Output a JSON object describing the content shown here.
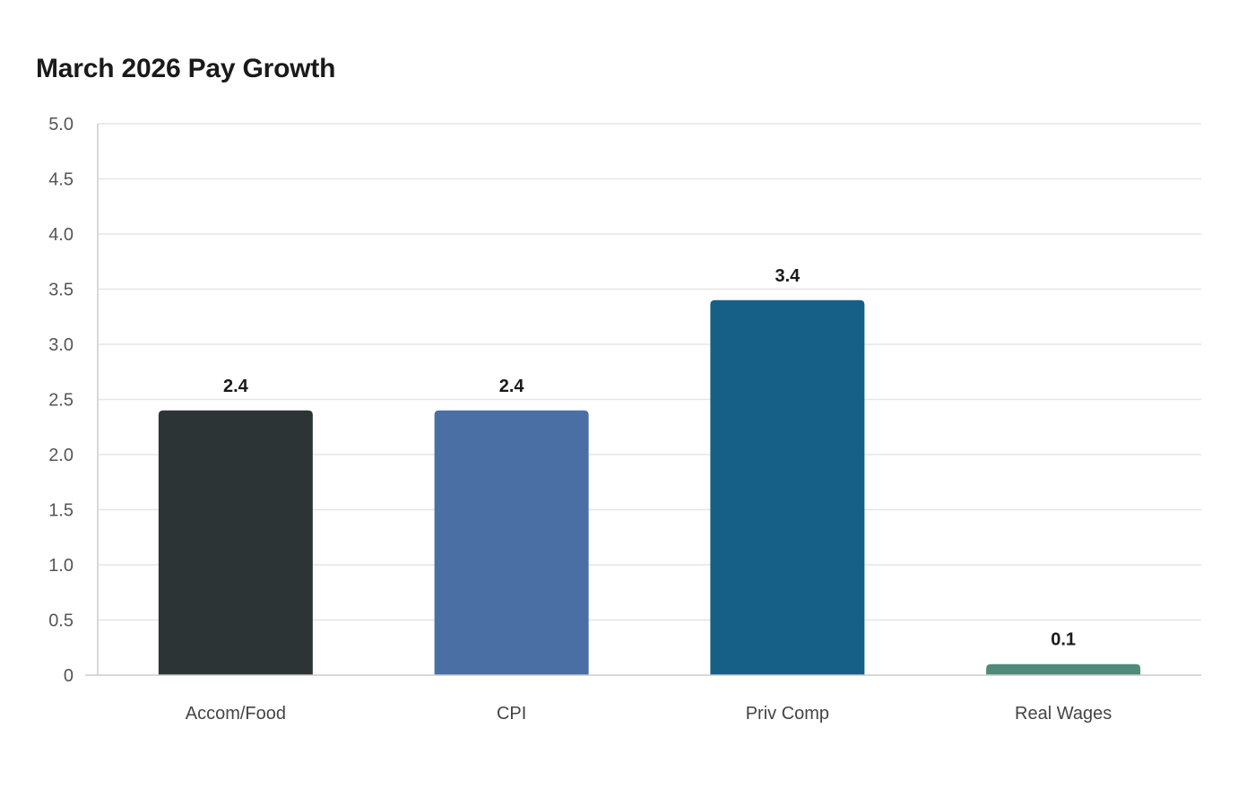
{
  "chart_data": {
    "type": "bar",
    "title": "March 2026 Pay Growth",
    "categories": [
      "Accom/Food",
      "CPI",
      "Priv Comp",
      "Real Wages"
    ],
    "values": [
      2.4,
      2.4,
      3.4,
      0.1
    ],
    "value_labels": [
      "2.4",
      "2.4",
      "3.4",
      "0.1"
    ],
    "colors": [
      "#2d3436",
      "#4a6fa5",
      "#166088",
      "#4f8a7a"
    ],
    "xlabel": "",
    "ylabel": "",
    "ylim": [
      0,
      5
    ],
    "yticks": [
      "0",
      "0.5",
      "1.0",
      "1.5",
      "2.0",
      "2.5",
      "3.0",
      "3.5",
      "4.0",
      "4.5",
      "5.0"
    ],
    "grid": true,
    "legend": "none"
  }
}
